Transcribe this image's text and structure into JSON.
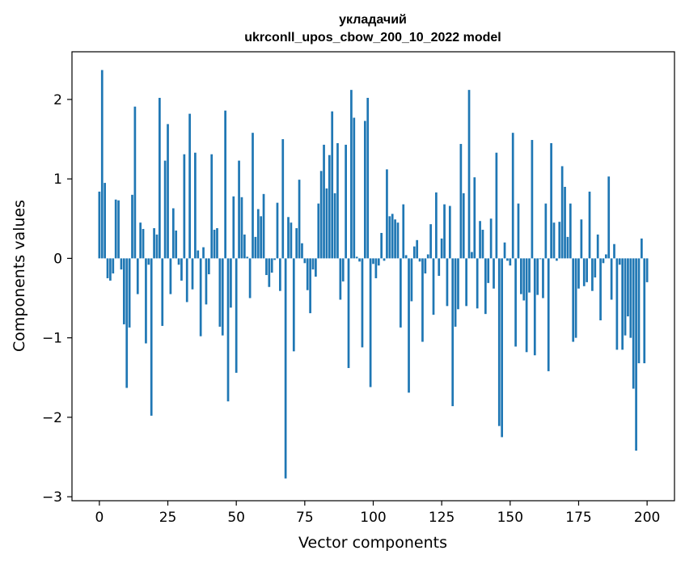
{
  "chart_data": {
    "type": "bar",
    "title_line1": "укладачий",
    "title_line2": "ukrconll_upos_cbow_200_10_2022 model",
    "xlabel": "Vector components",
    "ylabel": "Components values",
    "xlim": [
      -10,
      210
    ],
    "ylim": [
      -3.05,
      2.6
    ],
    "xticks": [
      0,
      25,
      50,
      75,
      100,
      125,
      150,
      175,
      200
    ],
    "xtick_labels": [
      "0",
      "25",
      "50",
      "75",
      "100",
      "125",
      "150",
      "175",
      "200"
    ],
    "yticks": [
      -3,
      -2,
      -1,
      0,
      1,
      2
    ],
    "ytick_labels": [
      "−3",
      "−2",
      "−1",
      "0",
      "1",
      "2"
    ],
    "bar_color": "#1f77b4",
    "values": [
      0.84,
      2.37,
      0.95,
      -0.25,
      -0.28,
      -0.19,
      0.74,
      0.73,
      -0.14,
      -0.83,
      -1.63,
      -0.87,
      0.8,
      1.91,
      -0.45,
      0.45,
      0.37,
      -1.07,
      -0.08,
      -1.98,
      0.38,
      0.3,
      2.02,
      -0.85,
      1.23,
      1.69,
      -0.45,
      0.63,
      0.35,
      -0.08,
      -0.28,
      1.31,
      -0.55,
      1.82,
      -0.39,
      1.33,
      0.1,
      -0.98,
      0.14,
      -0.58,
      -0.2,
      1.31,
      0.36,
      0.38,
      -0.86,
      -0.97,
      1.86,
      -1.8,
      -0.62,
      0.78,
      -1.44,
      1.23,
      0.77,
      0.3,
      0.02,
      -0.5,
      1.58,
      0.27,
      0.62,
      0.53,
      0.81,
      -0.21,
      -0.36,
      -0.18,
      -0.02,
      0.7,
      -0.41,
      1.5,
      -2.77,
      0.52,
      0.45,
      -1.17,
      0.38,
      0.99,
      0.19,
      -0.06,
      -0.4,
      -0.69,
      -0.14,
      -0.23,
      0.69,
      1.1,
      1.43,
      0.88,
      1.3,
      1.85,
      0.82,
      1.45,
      -0.52,
      -0.29,
      1.43,
      -1.38,
      2.12,
      1.77,
      0.02,
      -0.04,
      -1.12,
      1.73,
      2.02,
      -1.62,
      -0.07,
      -0.25,
      -0.09,
      0.32,
      -0.03,
      1.12,
      0.53,
      0.56,
      0.49,
      0.45,
      -0.87,
      0.68,
      0.04,
      -1.69,
      -0.54,
      0.15,
      0.23,
      -0.04,
      -1.05,
      -0.19,
      0.05,
      0.43,
      -0.71,
      0.83,
      -0.22,
      0.25,
      0.68,
      -0.6,
      0.66,
      -1.86,
      -0.86,
      -0.64,
      1.44,
      0.82,
      -0.6,
      2.12,
      0.08,
      1.02,
      -0.63,
      0.47,
      0.36,
      -0.7,
      -0.31,
      0.5,
      -0.38,
      1.33,
      -2.11,
      -2.25,
      0.2,
      -0.03,
      -0.09,
      1.58,
      -1.11,
      0.69,
      -0.45,
      -0.53,
      -1.18,
      -0.43,
      1.49,
      -1.22,
      -0.46,
      -0.01,
      -0.5,
      0.69,
      -1.42,
      1.45,
      0.45,
      -0.03,
      0.46,
      1.16,
      0.9,
      0.27,
      0.69,
      -1.05,
      -1.0,
      -0.38,
      0.49,
      -0.35,
      -0.3,
      0.84,
      -0.41,
      -0.24,
      0.3,
      -0.78,
      -0.06,
      0.05,
      1.03,
      -0.52,
      0.18,
      -1.15,
      -0.08,
      -1.15,
      -0.97,
      -0.73,
      -1.0,
      -1.64,
      -2.42,
      -1.32,
      0.25,
      -1.32,
      -0.3
    ]
  }
}
